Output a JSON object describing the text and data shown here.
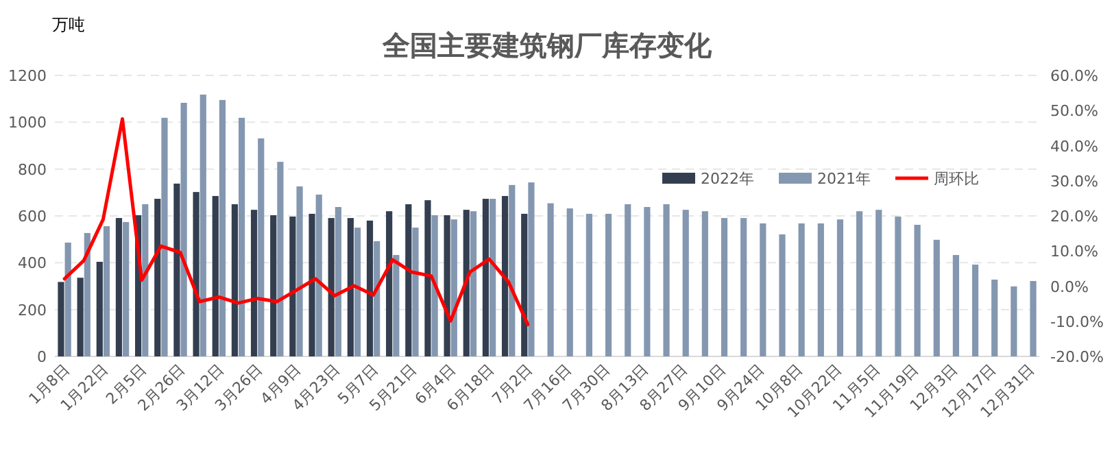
{
  "chart_data": {
    "type": "bar",
    "title": "全国主要建筑钢厂库存变化",
    "ylabel": "万吨",
    "categories": [
      "1月8日",
      null,
      "1月22日",
      null,
      "2月5日",
      null,
      "2月26日",
      null,
      "3月12日",
      null,
      "3月26日",
      null,
      "4月9日",
      null,
      "4月23日",
      null,
      "5月7日",
      null,
      "5月21日",
      null,
      "6月4日",
      null,
      "6月18日",
      null,
      "7月2日",
      null,
      "7月16日",
      null,
      "7月30日",
      null,
      "8月13日",
      null,
      "8月27日",
      null,
      "9月10日",
      null,
      "9月24日",
      null,
      "10月8日",
      null,
      "10月22日",
      null,
      "11月5日",
      null,
      "11月19日",
      null,
      "12月3日",
      null,
      "12月17日",
      null,
      "12月31日"
    ],
    "series": [
      {
        "name": "2022年",
        "color": "#333f50",
        "values": [
          318,
          336,
          404,
          591,
          603,
          673,
          738,
          702,
          685,
          650,
          626,
          603,
          597,
          609,
          591,
          591,
          580,
          620,
          650,
          667,
          603,
          626,
          673,
          685,
          609,
          null,
          null,
          null,
          null,
          null,
          null,
          null,
          null,
          null,
          null,
          null,
          null,
          null,
          null,
          null,
          null,
          null,
          null,
          null,
          null,
          null,
          null,
          null,
          null,
          null,
          null
        ]
      },
      {
        "name": "2021年",
        "color": "#8497b0",
        "values": [
          486,
          527,
          556,
          574,
          650,
          1019,
          1083,
          1118,
          1095,
          1019,
          931,
          831,
          726,
          691,
          638,
          550,
          492,
          433,
          550,
          603,
          585,
          620,
          673,
          732,
          743,
          654,
          632,
          609,
          609,
          650,
          638,
          650,
          626,
          620,
          591,
          591,
          568,
          521,
          568,
          568,
          585,
          620,
          626,
          597,
          562,
          498,
          433,
          392,
          328,
          299,
          322
        ]
      },
      {
        "name": "周环比",
        "type": "line",
        "axis": "y2",
        "color": "#ff0000",
        "values": [
          2.1,
          7.3,
          19.0,
          47.6,
          1.7,
          11.4,
          9.6,
          -4.4,
          -3.1,
          -4.8,
          -3.5,
          -4.4,
          -1.2,
          2.1,
          -2.7,
          0.1,
          -2.5,
          7.5,
          4.0,
          2.9,
          -9.9,
          4.0,
          7.7,
          1.2,
          -10.9,
          null,
          null,
          null,
          null,
          null,
          null,
          null,
          null,
          null,
          null,
          null,
          null,
          null,
          null,
          null,
          null,
          null,
          null,
          null,
          null,
          null,
          null,
          null,
          null,
          null,
          null
        ]
      }
    ],
    "ylim": [
      0,
      1200
    ],
    "yticks": [
      0,
      200,
      400,
      600,
      800,
      1000,
      1200
    ],
    "y2lim": [
      -20,
      60
    ],
    "y2ticks": [
      {
        "value": -20,
        "label": "-20.0%"
      },
      {
        "value": -10,
        "label": "-10.0%"
      },
      {
        "value": 0,
        "label": "0.0%"
      },
      {
        "value": 10,
        "label": "10.0%"
      },
      {
        "value": 20,
        "label": "20.0%"
      },
      {
        "value": 30,
        "label": "30.0%"
      },
      {
        "value": 40,
        "label": "40.0%"
      },
      {
        "value": 50,
        "label": "50.0%"
      },
      {
        "value": 60,
        "label": "60.0%"
      }
    ],
    "grid": "y",
    "legend": "right"
  }
}
